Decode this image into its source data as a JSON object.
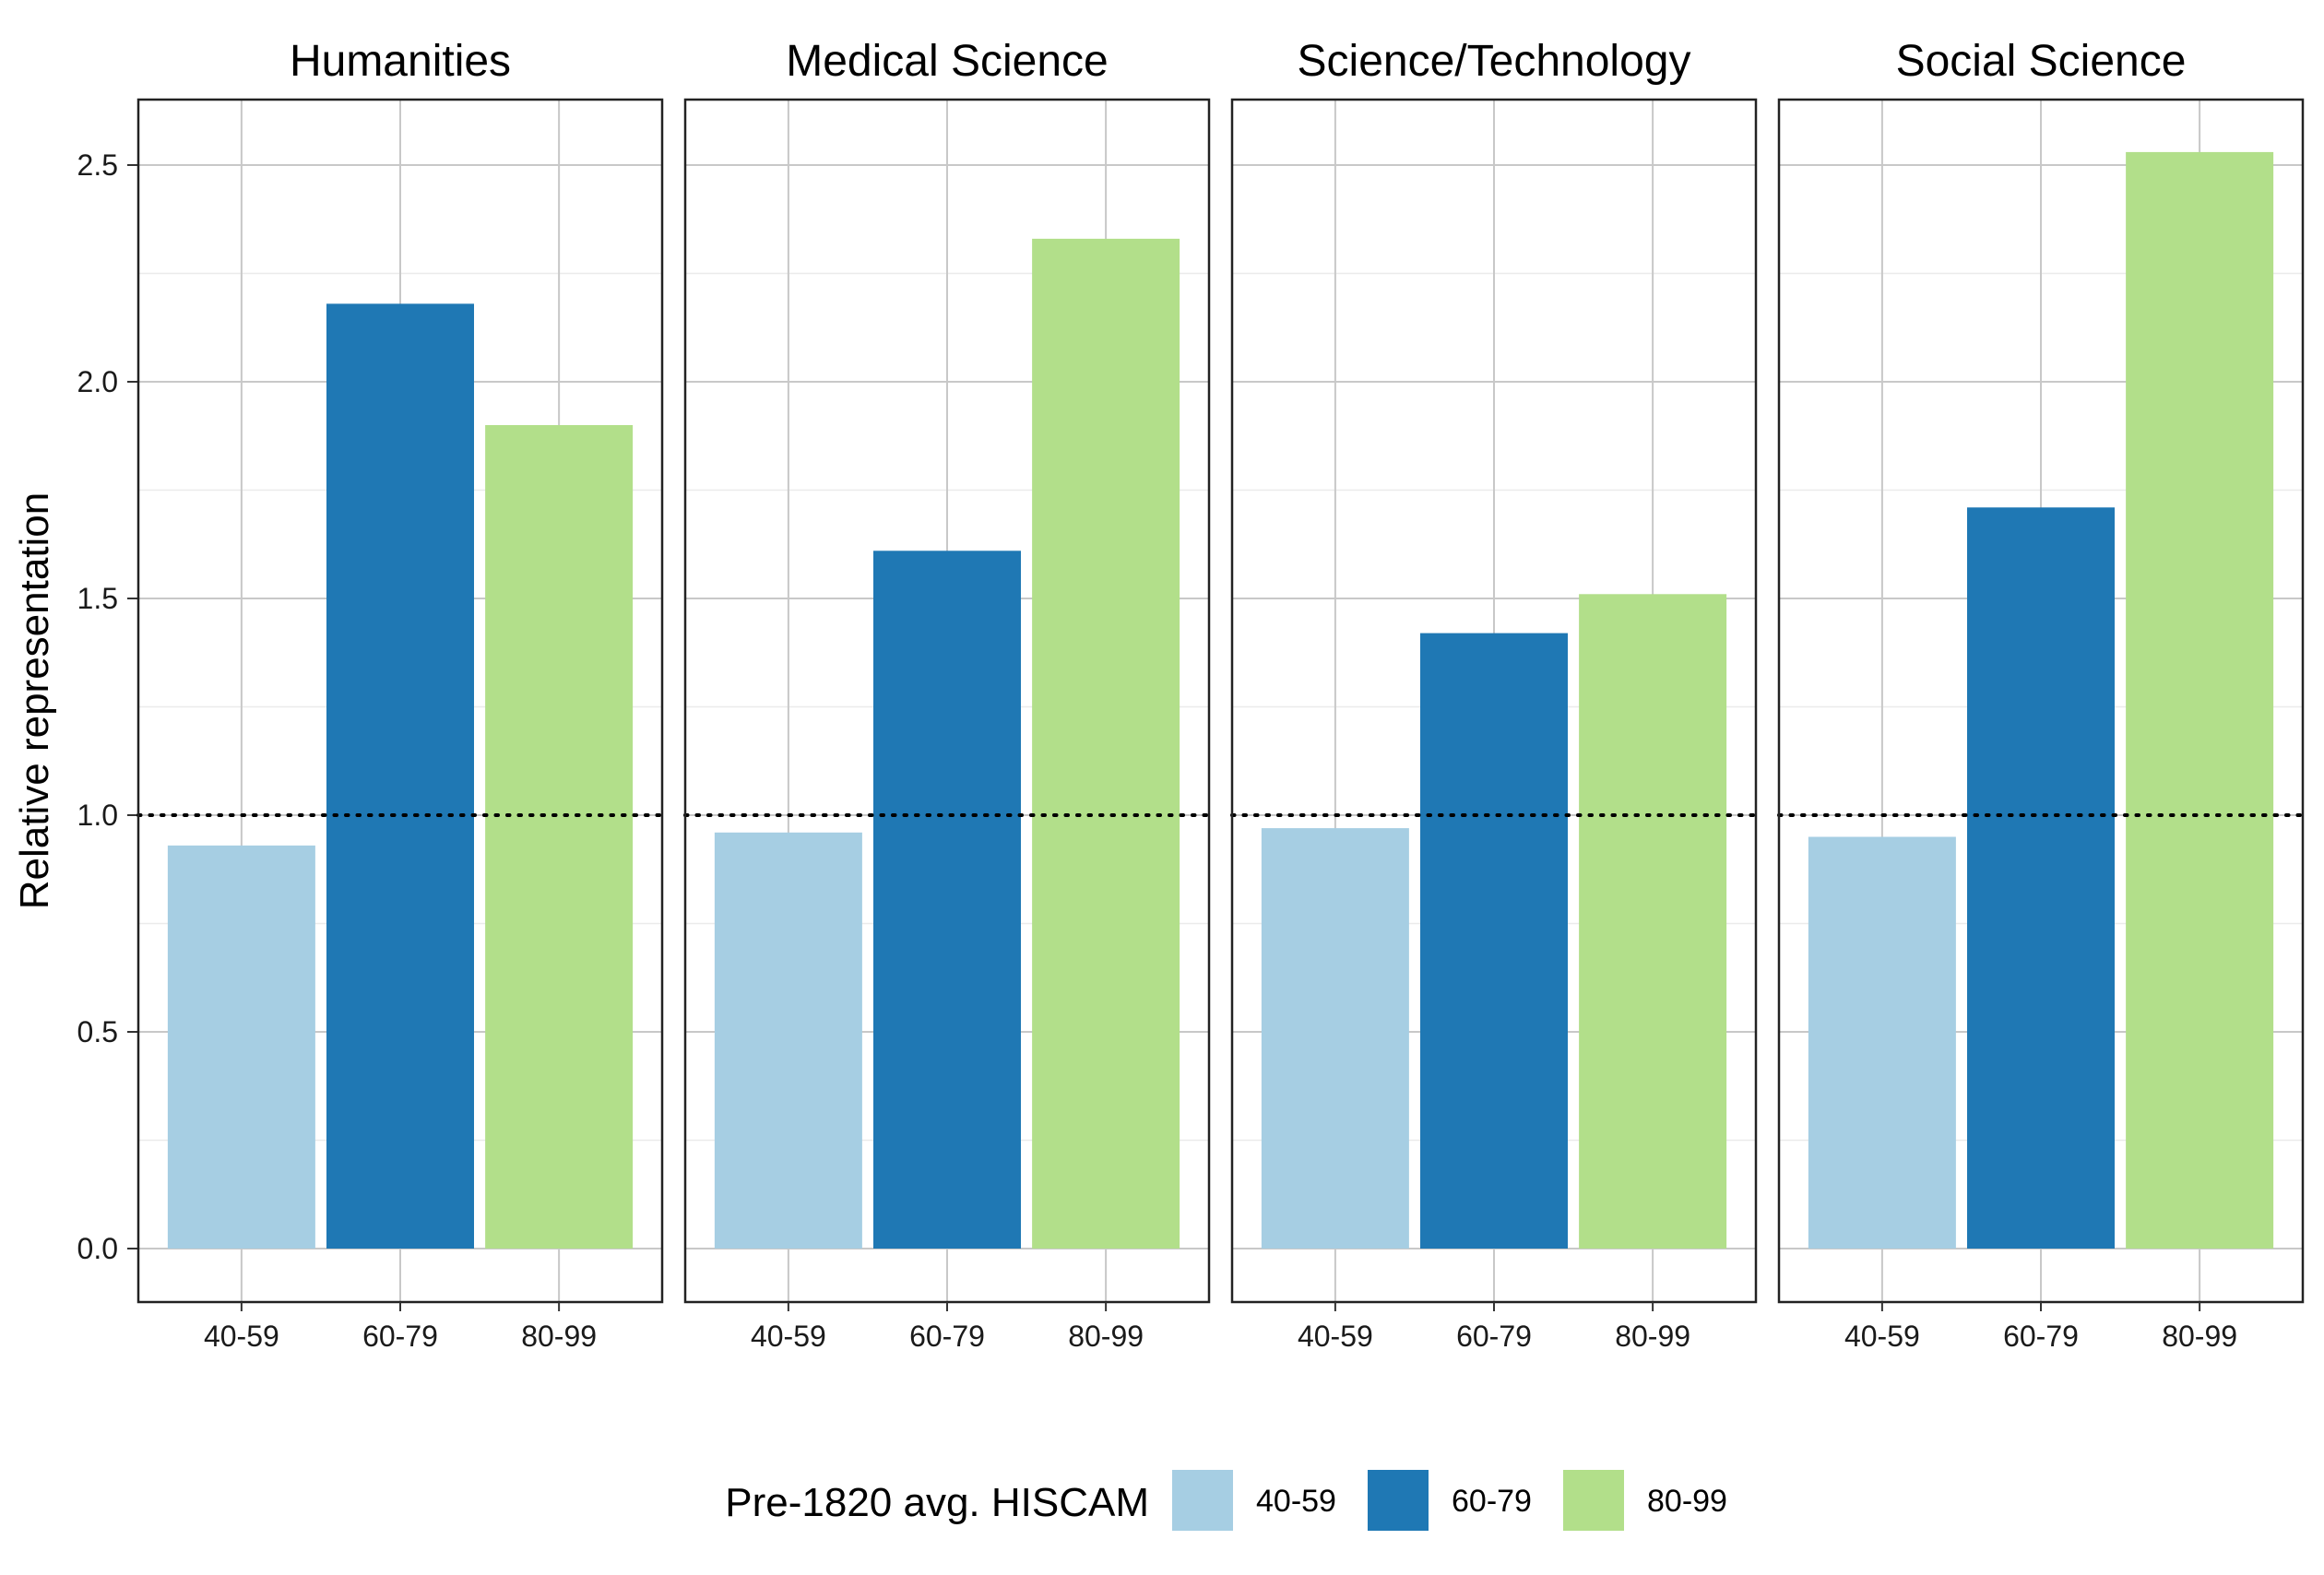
{
  "chart_data": {
    "type": "bar",
    "categories": [
      "40-59",
      "60-79",
      "80-99"
    ],
    "facets": [
      {
        "title": "Humanities",
        "values": [
          0.93,
          2.18,
          1.9
        ]
      },
      {
        "title": "Medical Science",
        "values": [
          0.96,
          1.61,
          2.33
        ]
      },
      {
        "title": "Science/Technology",
        "values": [
          0.97,
          1.42,
          1.51
        ]
      },
      {
        "title": "Social Science",
        "values": [
          0.95,
          1.71,
          2.53
        ]
      }
    ],
    "ylabel": "Relative representation",
    "ylim": [
      -0.12,
      2.65
    ],
    "yticks": [
      0.0,
      0.5,
      1.0,
      1.5,
      2.0,
      2.5
    ],
    "ytick_labels": [
      "0.0",
      "0.5",
      "1.0",
      "1.5",
      "2.0",
      "2.5"
    ],
    "reference_line": {
      "y": 1.0,
      "style": "dotted"
    },
    "legend": {
      "title": "Pre-1820 avg. HISCAM",
      "position": "bottom",
      "entries": [
        "40-59",
        "60-79",
        "80-99"
      ]
    },
    "colors": [
      "#a6cee3",
      "#1f78b4",
      "#b2df8a"
    ],
    "grid": true
  }
}
